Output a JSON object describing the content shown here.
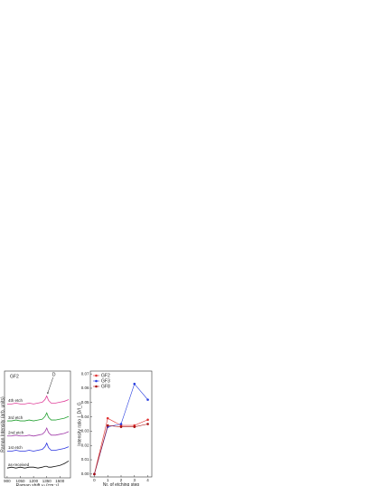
{
  "chart_data": [
    {
      "type": "line",
      "xlabel": "Raman shift ω (cm⁻¹)",
      "ylabel": "Raman Intensity (arb. units)",
      "annotations": [
        "GF2",
        "D"
      ],
      "x": [
        900,
        950,
        1000,
        1050,
        1100,
        1150,
        1200,
        1250,
        1300,
        1330,
        1350,
        1370,
        1400,
        1450,
        1500,
        1550,
        1600
      ],
      "xlim": [
        870,
        1620
      ],
      "xticks": [
        900,
        1050,
        1200,
        1350,
        1500
      ],
      "ylim": [
        0,
        12
      ],
      "series": [
        {
          "name": "as-received",
          "color": "#111111",
          "values": [
            1.1,
            1.2,
            1.1,
            1.2,
            1.1,
            1.2,
            1.2,
            1.1,
            1.2,
            1.3,
            1.3,
            1.2,
            1.2,
            1.3,
            1.4,
            1.6,
            1.9
          ]
        },
        {
          "name": "1st etch",
          "color": "#2b35e0",
          "values": [
            3.0,
            3.0,
            3.1,
            3.0,
            3.0,
            3.1,
            3.0,
            3.1,
            3.2,
            3.5,
            3.9,
            3.4,
            3.1,
            3.1,
            3.2,
            3.3,
            3.5
          ]
        },
        {
          "name": "2nd etch",
          "color": "#a03aa8",
          "values": [
            4.7,
            4.7,
            4.8,
            4.7,
            4.7,
            4.8,
            4.7,
            4.8,
            4.9,
            5.2,
            5.6,
            5.1,
            4.8,
            4.8,
            4.9,
            5.0,
            5.2
          ]
        },
        {
          "name": "3rd etch",
          "color": "#22a030",
          "values": [
            6.4,
            6.4,
            6.5,
            6.4,
            6.4,
            6.5,
            6.4,
            6.5,
            6.6,
            6.9,
            7.3,
            6.8,
            6.5,
            6.5,
            6.6,
            6.7,
            6.9
          ]
        },
        {
          "name": "4th etch",
          "color": "#e0409a",
          "values": [
            8.3,
            8.3,
            8.4,
            8.3,
            8.3,
            8.4,
            8.3,
            8.4,
            8.5,
            8.8,
            9.2,
            8.7,
            8.4,
            8.4,
            8.5,
            8.6,
            8.8
          ]
        }
      ]
    },
    {
      "type": "line_markers",
      "xlabel": "Nr. of etching step",
      "ylabel": "Intensity ratio I_D/I_G",
      "x": [
        0,
        1,
        2,
        3,
        4
      ],
      "xlim": [
        -0.3,
        4.3
      ],
      "xticks": [
        0,
        1,
        2,
        3,
        4
      ],
      "ylim": [
        -0.002,
        0.072
      ],
      "yticks": [
        {
          "value": 0,
          "label": "0.00"
        },
        {
          "value": 0.01,
          "label": "0.01"
        },
        {
          "value": 0.02,
          "label": "0.02"
        },
        {
          "value": 0.03,
          "label": "0.03"
        },
        {
          "value": 0.04,
          "label": "0.04"
        },
        {
          "value": 0.05,
          "label": "0.05"
        },
        {
          "value": 0.06,
          "label": "0.06"
        },
        {
          "value": 0.07,
          "label": "0.07"
        }
      ],
      "legend": "upper left",
      "series": [
        {
          "name": "GF2",
          "color": "#e03030",
          "values": [
            0,
            0.039,
            0.034,
            0.034,
            0.038
          ]
        },
        {
          "name": "GF3",
          "color": "#2a40e0",
          "values": [
            0,
            0.033,
            0.035,
            0.063,
            0.052
          ]
        },
        {
          "name": "GF8",
          "color": "#a81010",
          "values": [
            0,
            0.034,
            0.033,
            0.033,
            0.035
          ]
        }
      ]
    }
  ]
}
